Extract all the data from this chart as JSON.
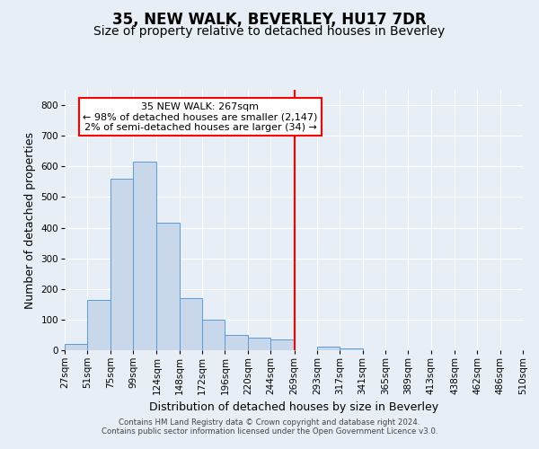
{
  "title": "35, NEW WALK, BEVERLEY, HU17 7DR",
  "subtitle": "Size of property relative to detached houses in Beverley",
  "xlabel": "Distribution of detached houses by size in Beverley",
  "ylabel": "Number of detached properties",
  "footer_line1": "Contains HM Land Registry data © Crown copyright and database right 2024.",
  "footer_line2": "Contains public sector information licensed under the Open Government Licence v3.0.",
  "bin_labels": [
    "27sqm",
    "51sqm",
    "75sqm",
    "99sqm",
    "124sqm",
    "148sqm",
    "172sqm",
    "196sqm",
    "220sqm",
    "244sqm",
    "269sqm",
    "293sqm",
    "317sqm",
    "341sqm",
    "365sqm",
    "389sqm",
    "413sqm",
    "438sqm",
    "462sqm",
    "486sqm",
    "510sqm"
  ],
  "bar_values": [
    20,
    165,
    560,
    615,
    415,
    170,
    100,
    50,
    40,
    35,
    0,
    13,
    5,
    0,
    0,
    0,
    0,
    0,
    0,
    0,
    5
  ],
  "bin_edges": [
    27,
    51,
    75,
    99,
    124,
    148,
    172,
    196,
    220,
    244,
    269,
    293,
    317,
    341,
    365,
    389,
    413,
    438,
    462,
    486,
    510
  ],
  "bar_color": "#c8d8ea",
  "bar_edge_color": "#5b9bd5",
  "vline_x": 269,
  "vline_color": "red",
  "annotation_title": "35 NEW WALK: 267sqm",
  "annotation_line2": "← 98% of detached houses are smaller (2,147)",
  "annotation_line3": "2% of semi-detached houses are larger (34) →",
  "annotation_box_color": "red",
  "annotation_bg": "white",
  "ylim": [
    0,
    850
  ],
  "yticks": [
    0,
    100,
    200,
    300,
    400,
    500,
    600,
    700,
    800
  ],
  "bg_color": "#e8eef5",
  "plot_bg_color": "#e8eef5",
  "grid_color": "white",
  "title_fontsize": 12,
  "subtitle_fontsize": 10,
  "axis_label_fontsize": 9,
  "tick_fontsize": 7.5,
  "ann_fontsize": 8
}
